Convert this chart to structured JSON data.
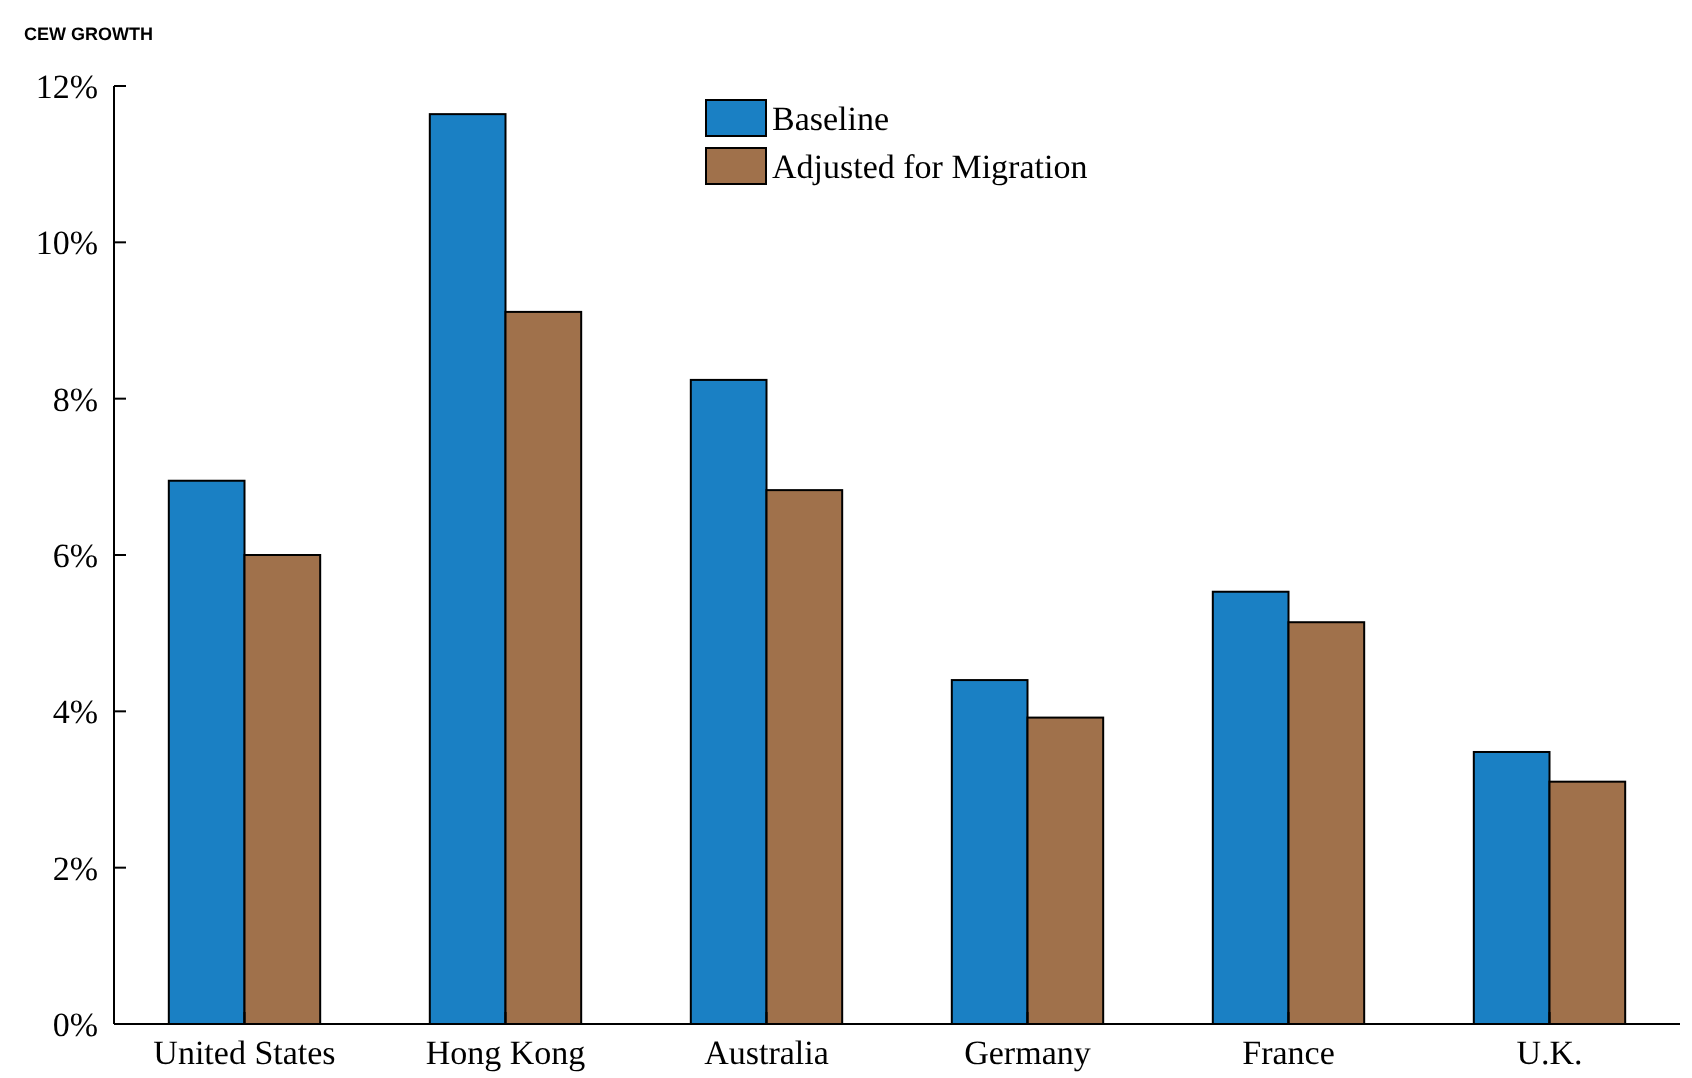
{
  "chart_data": {
    "type": "bar",
    "title": "CEW GROWTH",
    "categories": [
      "United States",
      "Hong Kong",
      "Australia",
      "Germany",
      "France",
      "U.K."
    ],
    "series": [
      {
        "name": "Baseline",
        "color": "#1a80c4",
        "values": [
          6.95,
          11.64,
          8.24,
          4.4,
          5.53,
          3.48
        ]
      },
      {
        "name": "Adjusted for Migration",
        "color": "#a0714b",
        "values": [
          6.0,
          9.11,
          6.83,
          3.92,
          5.14,
          3.1
        ]
      }
    ],
    "ylim": [
      0,
      12
    ],
    "yticks": [
      {
        "value": 0,
        "label": "0%"
      },
      {
        "value": 2,
        "label": "2%"
      },
      {
        "value": 4,
        "label": "4%"
      },
      {
        "value": 6,
        "label": "6%"
      },
      {
        "value": 8,
        "label": "8%"
      },
      {
        "value": 10,
        "label": "10%"
      },
      {
        "value": 12,
        "label": "12%"
      }
    ],
    "legend": "top"
  }
}
